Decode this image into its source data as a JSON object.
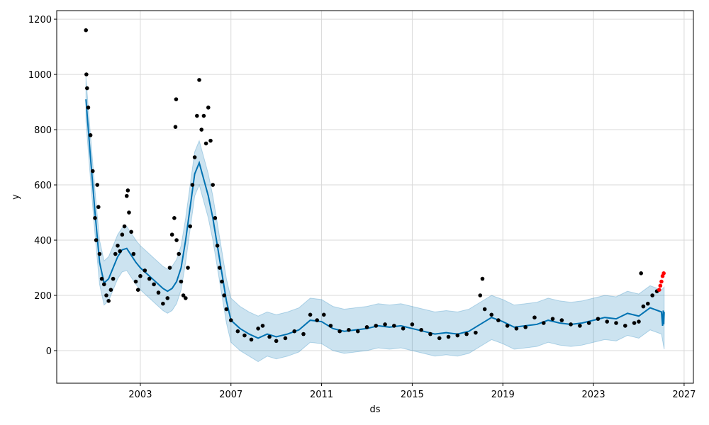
{
  "chart_data": {
    "type": "line",
    "x_label": "ds",
    "y_label": "y",
    "xlim": [
      1999.31,
      2027.41
    ],
    "xticks": [
      2003,
      2007,
      2011,
      2015,
      2019,
      2023,
      2027
    ],
    "ylim": [
      -118,
      1231
    ],
    "yticks": [
      0,
      200,
      400,
      600,
      800,
      1000,
      1200
    ],
    "grid": true,
    "series": [
      {
        "style": "band",
        "color": "#0072b2",
        "x": [
          2000.6,
          2000.8,
          2001.0,
          2001.2,
          2001.4,
          2001.6,
          2001.8,
          2002.0,
          2002.2,
          2002.4,
          2002.6,
          2002.8,
          2003.0,
          2003.2,
          2003.4,
          2003.6,
          2003.8,
          2004.0,
          2004.2,
          2004.4,
          2004.6,
          2004.8,
          2005.0,
          2005.2,
          2005.4,
          2005.6,
          2005.8,
          2006.0,
          2006.2,
          2006.4,
          2006.6,
          2006.8,
          2007.0,
          2007.4,
          2007.8,
          2008.2,
          2008.6,
          2009.0,
          2009.5,
          2010.0,
          2010.5,
          2011.0,
          2011.5,
          2012.0,
          2012.5,
          2013.0,
          2013.5,
          2014.0,
          2014.5,
          2015.0,
          2015.5,
          2016.0,
          2016.5,
          2017.0,
          2017.5,
          2018.0,
          2018.5,
          2019.0,
          2019.5,
          2020.0,
          2020.5,
          2021.0,
          2021.5,
          2022.0,
          2022.5,
          2023.0,
          2023.5,
          2024.0,
          2024.5,
          2025.0,
          2025.5,
          2026.0,
          2026.12
        ],
        "lower": [
          830,
          620,
          420,
          240,
          165,
          180,
          220,
          260,
          285,
          290,
          265,
          240,
          220,
          205,
          190,
          175,
          160,
          145,
          135,
          145,
          170,
          220,
          320,
          440,
          560,
          600,
          540,
          480,
          400,
          300,
          200,
          100,
          30,
          0,
          -20,
          -40,
          -20,
          -30,
          -20,
          -5,
          30,
          25,
          0,
          -10,
          -5,
          0,
          10,
          5,
          10,
          0,
          -10,
          -20,
          -15,
          -20,
          -10,
          15,
          40,
          25,
          5,
          10,
          15,
          30,
          20,
          15,
          20,
          30,
          40,
          35,
          55,
          45,
          75,
          60,
          5
        ],
        "upper": [
          990,
          780,
          580,
          400,
          325,
          340,
          380,
          420,
          445,
          450,
          425,
          400,
          380,
          365,
          350,
          335,
          320,
          305,
          295,
          305,
          330,
          380,
          480,
          600,
          720,
          760,
          700,
          640,
          560,
          460,
          360,
          260,
          190,
          160,
          140,
          125,
          140,
          130,
          140,
          155,
          190,
          185,
          160,
          150,
          155,
          160,
          170,
          165,
          170,
          160,
          150,
          140,
          145,
          140,
          150,
          175,
          200,
          185,
          165,
          170,
          175,
          190,
          180,
          175,
          180,
          190,
          200,
          195,
          215,
          205,
          235,
          220,
          230
        ]
      },
      {
        "style": "line",
        "color": "#0072b2",
        "x": [
          2000.6,
          2000.8,
          2001.0,
          2001.2,
          2001.4,
          2001.6,
          2001.8,
          2002.0,
          2002.2,
          2002.4,
          2002.6,
          2002.8,
          2003.0,
          2003.2,
          2003.4,
          2003.6,
          2003.8,
          2004.0,
          2004.2,
          2004.4,
          2004.6,
          2004.8,
          2005.0,
          2005.2,
          2005.4,
          2005.6,
          2005.8,
          2006.0,
          2006.2,
          2006.4,
          2006.6,
          2006.8,
          2007.0,
          2007.4,
          2007.8,
          2008.2,
          2008.6,
          2009.0,
          2009.5,
          2010.0,
          2010.5,
          2011.0,
          2011.5,
          2012.0,
          2012.5,
          2013.0,
          2013.5,
          2014.0,
          2014.5,
          2015.0,
          2015.5,
          2016.0,
          2016.5,
          2017.0,
          2017.5,
          2018.0,
          2018.5,
          2019.0,
          2019.5,
          2020.0,
          2020.5,
          2021.0,
          2021.5,
          2022.0,
          2022.5,
          2023.0,
          2023.5,
          2024.0,
          2024.5,
          2025.0,
          2025.5,
          2026.0,
          2026.05,
          2026.08,
          2026.1,
          2026.12
        ],
        "values": [
          910,
          700,
          500,
          320,
          245,
          260,
          300,
          340,
          365,
          370,
          345,
          320,
          300,
          285,
          270,
          255,
          240,
          225,
          215,
          225,
          250,
          300,
          400,
          520,
          640,
          680,
          620,
          560,
          480,
          380,
          280,
          180,
          110,
          80,
          60,
          45,
          60,
          50,
          60,
          75,
          110,
          105,
          80,
          70,
          75,
          80,
          90,
          85,
          90,
          80,
          70,
          60,
          65,
          60,
          70,
          95,
          120,
          105,
          85,
          90,
          95,
          110,
          100,
          95,
          100,
          110,
          120,
          115,
          135,
          125,
          155,
          140,
          90,
          145,
          95,
          140
        ]
      },
      {
        "style": "points",
        "color": "#000000",
        "x": [
          2000.6,
          2000.62,
          2000.65,
          2000.7,
          2000.8,
          2000.9,
          2001.0,
          2001.05,
          2001.1,
          2001.15,
          2001.2,
          2001.3,
          2001.4,
          2001.5,
          2001.6,
          2001.7,
          2001.8,
          2001.9,
          2002.0,
          2002.1,
          2002.2,
          2002.3,
          2002.4,
          2002.45,
          2002.5,
          2002.6,
          2002.7,
          2002.8,
          2002.9,
          2003.0,
          2003.2,
          2003.4,
          2003.6,
          2003.8,
          2004.0,
          2004.2,
          2004.3,
          2004.4,
          2004.5,
          2004.55,
          2004.58,
          2004.6,
          2004.7,
          2004.8,
          2004.9,
          2005.0,
          2005.1,
          2005.2,
          2005.3,
          2005.4,
          2005.5,
          2005.6,
          2005.7,
          2005.8,
          2005.9,
          2006.0,
          2006.1,
          2006.2,
          2006.3,
          2006.4,
          2006.5,
          2006.6,
          2006.7,
          2006.8,
          2007.0,
          2007.3,
          2007.6,
          2007.9,
          2008.2,
          2008.4,
          2008.7,
          2009.0,
          2009.4,
          2009.8,
          2010.2,
          2010.5,
          2010.8,
          2011.1,
          2011.4,
          2011.8,
          2012.2,
          2012.6,
          2013.0,
          2013.4,
          2013.8,
          2014.2,
          2014.6,
          2015.0,
          2015.4,
          2015.8,
          2016.2,
          2016.6,
          2017.0,
          2017.4,
          2017.8,
          2018.0,
          2018.1,
          2018.2,
          2018.5,
          2018.8,
          2019.2,
          2019.6,
          2020.0,
          2020.4,
          2020.8,
          2021.2,
          2021.6,
          2022.0,
          2022.4,
          2022.8,
          2023.2,
          2023.6,
          2024.0,
          2024.4,
          2024.8,
          2025.0,
          2025.1,
          2025.2,
          2025.4,
          2025.6,
          2025.8
        ],
        "values": [
          1160,
          1000,
          950,
          880,
          780,
          650,
          480,
          400,
          600,
          520,
          350,
          260,
          240,
          200,
          180,
          220,
          260,
          350,
          380,
          360,
          420,
          450,
          560,
          580,
          500,
          430,
          350,
          250,
          220,
          270,
          290,
          260,
          240,
          210,
          170,
          190,
          300,
          420,
          480,
          810,
          910,
          400,
          350,
          250,
          200,
          190,
          300,
          450,
          600,
          700,
          850,
          980,
          800,
          850,
          750,
          880,
          760,
          600,
          480,
          380,
          300,
          250,
          200,
          150,
          110,
          70,
          55,
          40,
          80,
          90,
          50,
          35,
          45,
          70,
          60,
          130,
          110,
          130,
          90,
          70,
          75,
          70,
          85,
          90,
          95,
          90,
          80,
          95,
          75,
          60,
          45,
          50,
          55,
          60,
          65,
          200,
          260,
          150,
          130,
          110,
          90,
          80,
          85,
          120,
          100,
          115,
          110,
          95,
          90,
          100,
          115,
          105,
          100,
          90,
          100,
          105,
          280,
          160,
          170,
          200,
          215
        ]
      },
      {
        "style": "points",
        "color": "#ff0000",
        "x": [
          2025.9,
          2025.95,
          2026.0,
          2026.05,
          2026.1
        ],
        "values": [
          220,
          235,
          250,
          270,
          280
        ]
      }
    ]
  }
}
